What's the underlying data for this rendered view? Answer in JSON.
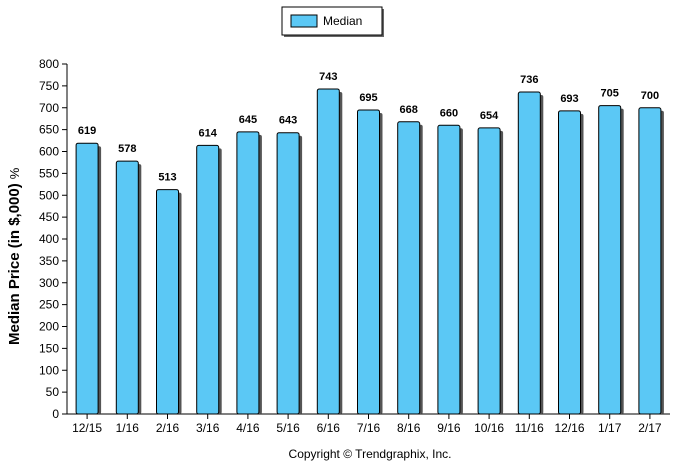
{
  "chart_data": {
    "type": "bar",
    "categories": [
      "12/15",
      "1/16",
      "2/16",
      "3/16",
      "4/16",
      "5/16",
      "6/16",
      "7/16",
      "8/16",
      "9/16",
      "10/16",
      "11/16",
      "12/16",
      "1/17",
      "2/17"
    ],
    "series": [
      {
        "name": "Median",
        "values": [
          619,
          578,
          513,
          614,
          645,
          643,
          743,
          695,
          668,
          660,
          654,
          736,
          693,
          705,
          700
        ]
      }
    ],
    "ylabel": "Median Price (in $,000)",
    "ylabel_unit": "%",
    "ylim": [
      0,
      800
    ],
    "yticks": [
      0,
      50,
      100,
      150,
      200,
      250,
      300,
      350,
      400,
      450,
      500,
      550,
      600,
      650,
      700,
      750,
      800
    ],
    "grid": false,
    "legend_position": "top-center",
    "bar_color": "#5BC8F5",
    "bar_edge_color": "#000000",
    "copyright": "Copyright © Trendgraphix, Inc."
  }
}
